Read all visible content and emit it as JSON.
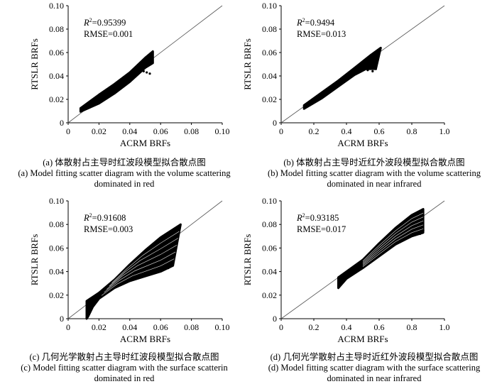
{
  "chart_data": [
    {
      "type": "scatter",
      "panel": "a",
      "xlabel": "ACRM BRFs",
      "ylabel": "RTSLR BRFs",
      "xlim": [
        0,
        0.1
      ],
      "ylim": [
        0,
        0.1
      ],
      "x_ticks": [
        "0",
        "0.02",
        "0.04",
        "0.06",
        "0.08",
        "0.10"
      ],
      "y_ticks": [
        "0",
        "0.02",
        "0.04",
        "0.06",
        "0.08",
        "0.10"
      ],
      "reference_line": "1:1",
      "stats": {
        "r2_label": "R",
        "r2_sup": "2",
        "r2_value": "=0.95399",
        "rmse": "RMSE=0.001"
      },
      "cloud": {
        "style": "band",
        "upper": [
          [
            0.008,
            0.0125
          ],
          [
            0.02,
            0.024
          ],
          [
            0.03,
            0.033
          ],
          [
            0.04,
            0.043
          ],
          [
            0.05,
            0.0555
          ],
          [
            0.055,
            0.061
          ]
        ],
        "lower": [
          [
            0.008,
            0.0095
          ],
          [
            0.02,
            0.0165
          ],
          [
            0.03,
            0.025
          ],
          [
            0.04,
            0.035
          ],
          [
            0.05,
            0.047
          ],
          [
            0.055,
            0.051
          ]
        ],
        "outliers": [
          [
            0.049,
            0.044
          ],
          [
            0.051,
            0.043
          ],
          [
            0.053,
            0.042
          ]
        ]
      },
      "caption_cn": "(a) 体散射占主导时红波段模型拟合散点图",
      "caption_en_1": "(a) Model fitting scatter diagram with the volume scattering",
      "caption_en_2": "dominated in red"
    },
    {
      "type": "scatter",
      "panel": "b",
      "xlabel": "ACRM BRFs",
      "ylabel": "RTSLR BRFs",
      "xlim": [
        0,
        1.0
      ],
      "ylim": [
        0,
        0.1
      ],
      "x_ticks": [
        "0",
        "0.2",
        "0.4",
        "0.6",
        "0.8",
        "1.0"
      ],
      "y_ticks": [
        "0",
        "0.02",
        "0.04",
        "0.06",
        "0.08",
        "0.10"
      ],
      "reference_line": "1:1",
      "stats": {
        "r2_label": "R",
        "r2_sup": "2",
        "r2_value": "=0.9494",
        "rmse": "RMSE=0.013"
      },
      "cloud": {
        "style": "band",
        "upper": [
          [
            0.14,
            0.015
          ],
          [
            0.25,
            0.026
          ],
          [
            0.35,
            0.036
          ],
          [
            0.45,
            0.047
          ],
          [
            0.55,
            0.058
          ],
          [
            0.61,
            0.064
          ]
        ],
        "lower": [
          [
            0.14,
            0.012
          ],
          [
            0.25,
            0.021
          ],
          [
            0.35,
            0.031
          ],
          [
            0.45,
            0.041
          ],
          [
            0.52,
            0.046
          ],
          [
            0.58,
            0.046
          ]
        ],
        "outliers": [
          [
            0.53,
            0.045
          ],
          [
            0.56,
            0.044
          ],
          [
            0.58,
            0.046
          ]
        ]
      },
      "caption_cn": "(b) 体散射占主导时近红外波段模型拟合散点图",
      "caption_en_1": "(b) Model fitting scatter diagram with the volume scattering",
      "caption_en_2": "dominated in near infrared"
    },
    {
      "type": "scatter",
      "panel": "c",
      "xlabel": "ACRM BRFs",
      "ylabel": "RTSLR BRFs",
      "xlim": [
        0,
        0.1
      ],
      "ylim": [
        0,
        0.1
      ],
      "x_ticks": [
        "0",
        "0.02",
        "0.04",
        "0.06",
        "0.08",
        "0.10"
      ],
      "y_ticks": [
        "0",
        "0.02",
        "0.04",
        "0.06",
        "0.08",
        "0.10"
      ],
      "reference_line": "1:1",
      "stats": {
        "r2_label": "R",
        "r2_sup": "2",
        "r2_value": "=0.91608",
        "rmse": "RMSE=0.003"
      },
      "cloud": {
        "style": "fan",
        "upper": [
          [
            0.012,
            0.015
          ],
          [
            0.02,
            0.022
          ],
          [
            0.03,
            0.033
          ],
          [
            0.04,
            0.046
          ],
          [
            0.05,
            0.058
          ],
          [
            0.06,
            0.069
          ],
          [
            0.073,
            0.08
          ]
        ],
        "lower": [
          [
            0.012,
            0.0
          ],
          [
            0.013,
            0.002
          ],
          [
            0.016,
            0.01
          ],
          [
            0.02,
            0.017
          ],
          [
            0.03,
            0.026
          ],
          [
            0.04,
            0.032
          ],
          [
            0.05,
            0.036
          ],
          [
            0.06,
            0.04
          ],
          [
            0.068,
            0.045
          ]
        ],
        "outliers": [
          [
            0.012,
            0.001
          ],
          [
            0.013,
            0.004
          ],
          [
            0.014,
            0.007
          ],
          [
            0.065,
            0.043
          ],
          [
            0.068,
            0.048
          ]
        ]
      },
      "caption_cn": "(c) 几何光学散射占主导时红波段模型拟合散点图",
      "caption_en_1": "(c) Model fitting scatter diagram with the surface scatterin",
      "caption_en_2": "dominated in red"
    },
    {
      "type": "scatter",
      "panel": "d",
      "xlabel": "ACRM BRFs",
      "ylabel": "RTSLR BRFs",
      "xlim": [
        0,
        1.0
      ],
      "ylim": [
        0,
        0.1
      ],
      "x_ticks": [
        "0",
        "0.2",
        "0.4",
        "0.6",
        "0.8",
        "1.0"
      ],
      "y_ticks": [
        "0",
        "0.02",
        "0.04",
        "0.06",
        "0.08",
        "0.10"
      ],
      "reference_line": "1:1",
      "stats": {
        "r2_label": "R",
        "r2_sup": "2",
        "r2_value": "=0.93185",
        "rmse": "RMSE=0.017"
      },
      "cloud": {
        "style": "fan",
        "upper": [
          [
            0.35,
            0.035
          ],
          [
            0.4,
            0.04
          ],
          [
            0.5,
            0.05
          ],
          [
            0.6,
            0.064
          ],
          [
            0.7,
            0.077
          ],
          [
            0.8,
            0.088
          ],
          [
            0.87,
            0.093
          ]
        ],
        "lower": [
          [
            0.35,
            0.026
          ],
          [
            0.4,
            0.034
          ],
          [
            0.5,
            0.043
          ],
          [
            0.6,
            0.053
          ],
          [
            0.7,
            0.063
          ],
          [
            0.8,
            0.07
          ],
          [
            0.87,
            0.073
          ]
        ],
        "outliers": [
          [
            0.36,
            0.028
          ],
          [
            0.85,
            0.072
          ],
          [
            0.87,
            0.075
          ]
        ]
      },
      "caption_cn": "(d) 几何光学散射占主导时近红外波段模型拟合散点图",
      "caption_en_1": "(d) Model fitting scatter diagram with the surface scattering",
      "caption_en_2": "dominated in near infrared"
    }
  ]
}
